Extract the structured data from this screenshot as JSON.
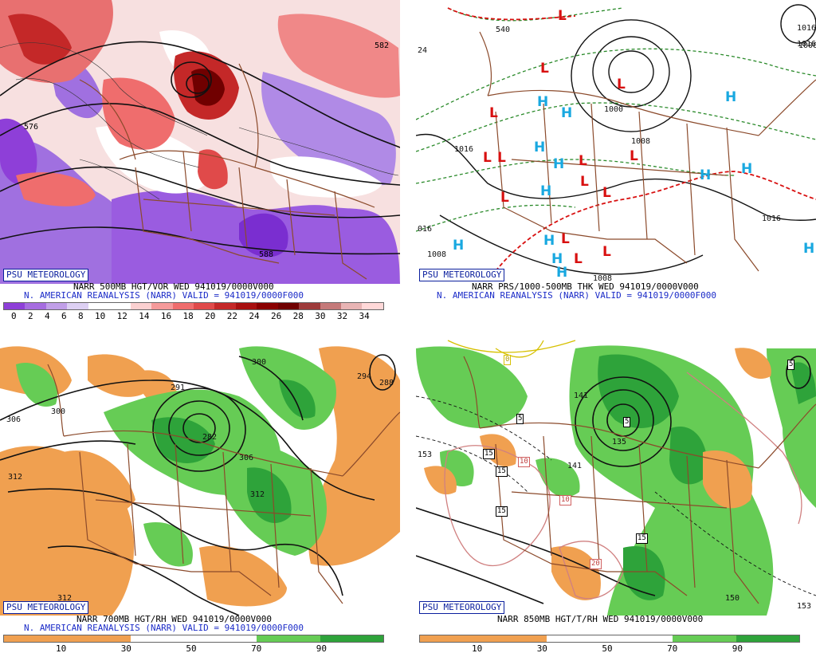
{
  "badge": "PSU METEOROLOGY",
  "panels": {
    "tl": {
      "line1": "NARR 500MB HGT/VOR WED 941019/0000V000",
      "line2": "N. AMERICAN REANALYSIS (NARR) VALID = 941019/0000F000",
      "ticks": [
        "0",
        "2",
        "4",
        "6",
        "8",
        "10",
        "12",
        "14",
        "16",
        "18",
        "20",
        "22",
        "24",
        "26",
        "28",
        "30",
        "32",
        "34"
      ],
      "colors": [
        "#8e3fd8",
        "#a66ce0",
        "#c19fe8",
        "#ddd0f3",
        "#ffffff",
        "#ffffff",
        "#fbd0d0",
        "#f59a9a",
        "#ef6d6d",
        "#e04a4a",
        "#c42828",
        "#a81010",
        "#8a0000",
        "#700000",
        "#9e3b3b",
        "#c57a7a",
        "#e8b4b4",
        "#ffd8d8"
      ],
      "labels": [
        "576",
        "588",
        "582"
      ]
    },
    "tr": {
      "line1": "NARR PRS/1000-500MB THK WED 941019/0000V000",
      "line2": "N. AMERICAN REANALYSIS (NARR) VALID = 941019/0000F000",
      "labels": [
        "540",
        "1016",
        "1000",
        "1008",
        "1016",
        "1008",
        "1016",
        "1016",
        "1000",
        "016",
        "1008",
        "24"
      ],
      "H": "H",
      "L": "L"
    },
    "bl": {
      "line1": "NARR 700MB HGT/RH WED 941019/0000V000",
      "line2": "N. AMERICAN REANALYSIS (NARR) VALID = 941019/0000F000",
      "ticks": [
        "10",
        "30",
        "50",
        "70",
        "90"
      ],
      "labels": [
        "306",
        "300",
        "312",
        "291",
        "282",
        "306",
        "312",
        "300",
        "312",
        "294",
        "288"
      ]
    },
    "br": {
      "line1": "NARR 850MB HGT/T/RH WED 941019/0000V000",
      "ticks": [
        "10",
        "30",
        "50",
        "70",
        "90"
      ],
      "labels": [
        "141",
        "135",
        "141",
        "153",
        "150",
        "153"
      ],
      "boxes": [
        "0",
        "5",
        "5",
        "15",
        "15",
        "15",
        "10",
        "10",
        "15",
        "20",
        "5"
      ]
    }
  },
  "colors": {
    "dry": "#f0a050",
    "wet_light": "#66cc55",
    "wet_mid": "#2ea33a",
    "wet_dark": "#1c7a28",
    "vort_purple": "#9050d8",
    "vort_red": "#e05050",
    "map_brown": "#8b4a2b",
    "high_blue": "#18a8e0",
    "low_red": "#d81010"
  }
}
